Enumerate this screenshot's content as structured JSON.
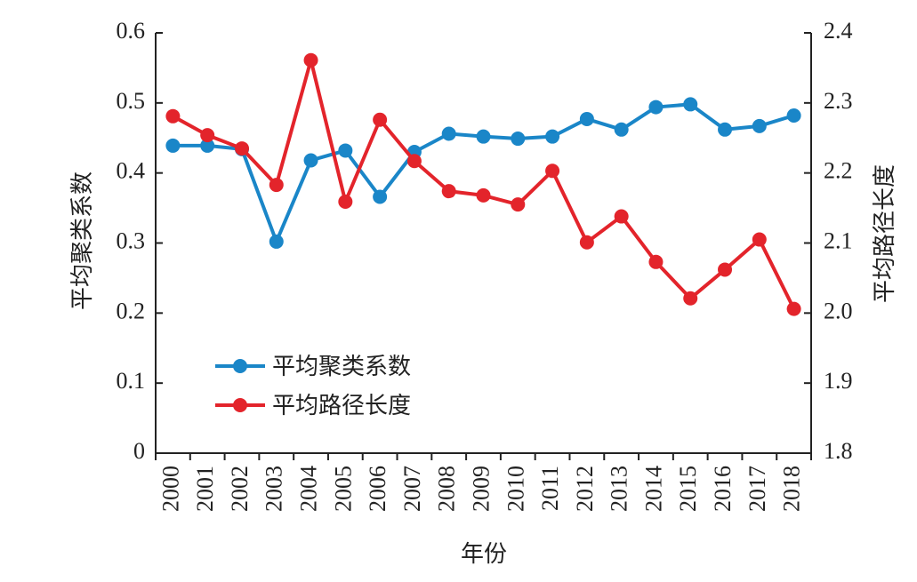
{
  "chart_data": {
    "type": "line",
    "xlabel": "年份",
    "ylabel_left": "平均聚类系数",
    "ylabel_right": "平均路径长度",
    "x": [
      "2000",
      "2001",
      "2002",
      "2003",
      "2004",
      "2005",
      "2006",
      "2007",
      "2008",
      "2009",
      "2010",
      "2011",
      "2012",
      "2013",
      "2014",
      "2015",
      "2016",
      "2017",
      "2018"
    ],
    "y_left_range": [
      0,
      0.6
    ],
    "y_left_ticks": [
      "0",
      "0.1",
      "0.2",
      "0.3",
      "0.4",
      "0.5",
      "0.6"
    ],
    "y_right_range": [
      1.8,
      2.4
    ],
    "y_right_ticks": [
      "1.8",
      "1.9",
      "2.0",
      "2.1",
      "2.2",
      "2.3",
      "2.4"
    ],
    "grid": false,
    "legend_position": "lower-left",
    "series": [
      {
        "name": "平均聚类系数",
        "axis": "left",
        "color": "#1a86c8",
        "values": [
          0.439,
          0.439,
          0.434,
          0.302,
          0.418,
          0.432,
          0.366,
          0.43,
          0.456,
          0.452,
          0.449,
          0.452,
          0.477,
          0.462,
          0.494,
          0.498,
          0.462,
          0.467,
          0.482
        ]
      },
      {
        "name": "平均路径长度",
        "axis": "right",
        "color": "#e3242b",
        "values": [
          2.281,
          2.254,
          2.235,
          2.183,
          2.361,
          2.159,
          2.276,
          2.217,
          2.174,
          2.168,
          2.155,
          2.203,
          2.101,
          2.138,
          2.073,
          2.021,
          2.062,
          2.105,
          2.006
        ]
      }
    ]
  }
}
